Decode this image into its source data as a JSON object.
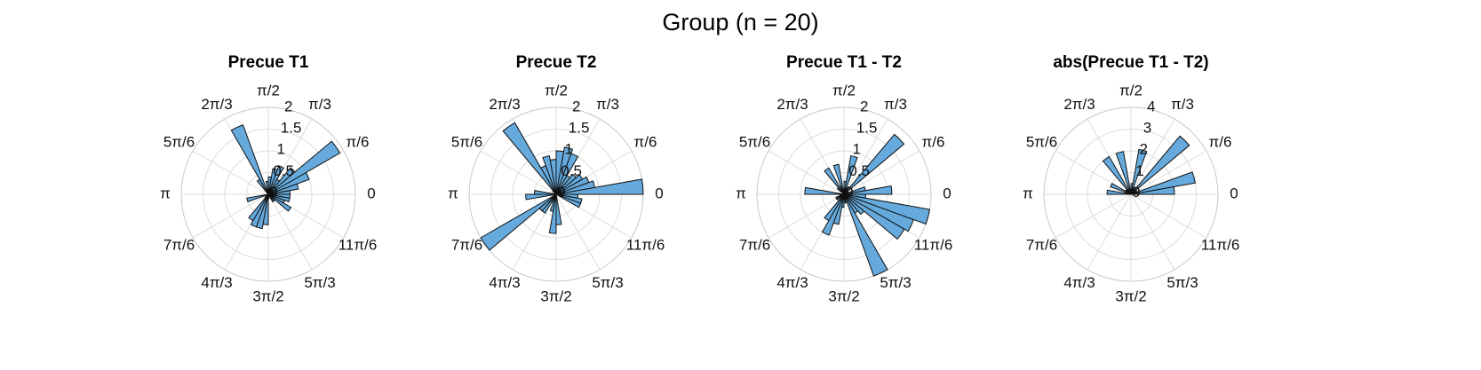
{
  "figure_title": "Group (n = 20)",
  "chart_data": [
    {
      "type": "polar-histogram",
      "title": "Precue T1",
      "rmax": 2,
      "r_ticks": [
        "0",
        "0.5",
        "1",
        "1.5",
        "2"
      ],
      "theta_ticks": [
        "0",
        "π/6",
        "π/3",
        "π/2",
        "2π/3",
        "5π/6",
        "π",
        "7π/6",
        "4π/3",
        "3π/2",
        "5π/3",
        "11π/6"
      ],
      "bin_count": 36,
      "values": [
        0.5,
        0.7,
        1.0,
        1.9,
        0.8,
        0.4,
        0.7,
        0.6,
        0.4,
        0.3,
        0,
        1.7,
        0.4,
        0,
        0,
        0,
        0,
        0,
        0,
        0.5,
        0,
        0,
        0.1,
        0.7,
        0.8,
        0.8,
        0.7,
        0.1,
        0,
        0,
        0.2,
        0.2,
        0.6,
        0.4,
        0.5,
        0.5
      ]
    },
    {
      "type": "polar-histogram",
      "title": "Precue T2",
      "rmax": 2,
      "r_ticks": [
        "0",
        "0.5",
        "1",
        "1.5",
        "2"
      ],
      "theta_ticks": [
        "0",
        "π/6",
        "π/3",
        "π/2",
        "2π/3",
        "5π/6",
        "π",
        "7π/6",
        "4π/3",
        "3π/2",
        "5π/3",
        "11π/6"
      ],
      "bin_count": 36,
      "values": [
        2.0,
        0.9,
        0.8,
        0.7,
        0.6,
        0.5,
        1.0,
        1.1,
        1.0,
        0.8,
        0.9,
        0.7,
        1.9,
        0.1,
        0,
        0,
        0,
        0.5,
        0.7,
        0,
        0,
        2.0,
        0.5,
        0.5,
        0.2,
        0.4,
        0.9,
        0.7,
        0,
        0,
        0,
        0,
        0,
        0.6,
        0.6,
        0.5
      ]
    },
    {
      "type": "polar-histogram",
      "title": "Precue T1 - T2",
      "rmax": 2,
      "r_ticks": [
        "0",
        "0.5",
        "1",
        "1.5",
        "2"
      ],
      "theta_ticks": [
        "0",
        "π/6",
        "π/3",
        "π/2",
        "2π/3",
        "5π/6",
        "π",
        "7π/6",
        "4π/3",
        "3π/2",
        "5π/3",
        "11π/6"
      ],
      "bin_count": 36,
      "values": [
        1.1,
        0.5,
        0.1,
        0.1,
        1.8,
        0.2,
        0.1,
        0.9,
        0.3,
        0.1,
        0.7,
        0.2,
        0.7,
        0.2,
        0,
        0,
        0,
        0.9,
        0.1,
        0,
        0.2,
        0.2,
        0.1,
        0.7,
        1.0,
        0.7,
        0.3,
        0.2,
        0.2,
        2.0,
        0.5,
        0.6,
        1.6,
        1.7,
        2.0,
        0.5
      ]
    },
    {
      "type": "polar-histogram",
      "title": "abs(Precue T1 - T2)",
      "rmax": 4,
      "r_ticks": [
        "0",
        "1",
        "2",
        "3",
        "4"
      ],
      "theta_ticks": [
        "0",
        "π/6",
        "π/3",
        "π/2",
        "2π/3",
        "5π/6",
        "π",
        "7π/6",
        "4π/3",
        "3π/2",
        "5π/3",
        "11π/6"
      ],
      "bin_count": 36,
      "values": [
        2.0,
        3.0,
        0.3,
        0.3,
        3.5,
        0.3,
        0.3,
        2.1,
        0.5,
        0.2,
        2.0,
        0.2,
        2.0,
        0.3,
        0.3,
        1.0,
        0.2,
        1.1,
        0,
        0,
        0,
        0,
        0,
        0,
        0,
        0,
        0,
        0,
        0,
        0,
        0,
        0,
        0,
        0,
        0,
        0
      ]
    }
  ]
}
